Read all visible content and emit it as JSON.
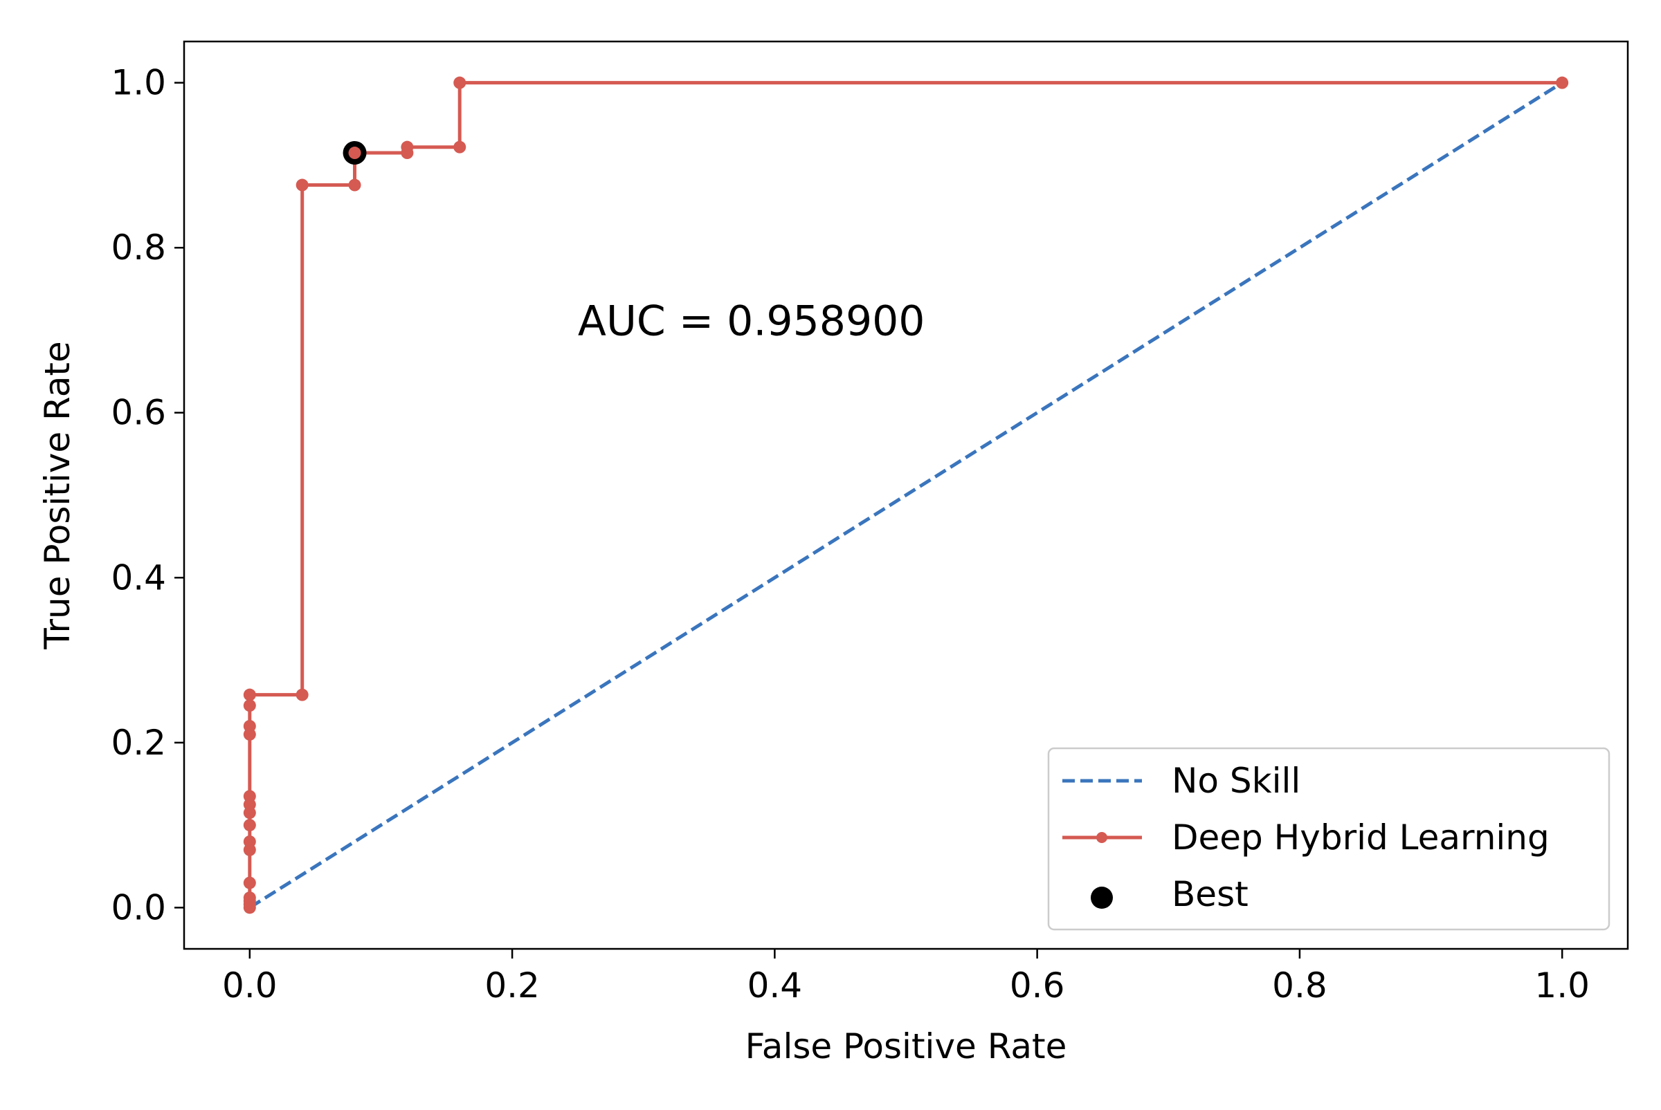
{
  "chart_data": {
    "type": "line",
    "xlabel": "False Positive Rate",
    "ylabel": "True Positive Rate",
    "xlim": [
      -0.05,
      1.05
    ],
    "ylim": [
      -0.05,
      1.05
    ],
    "xticks": [
      0.0,
      0.2,
      0.4,
      0.6,
      0.8,
      1.0
    ],
    "xtick_labels": [
      "0.0",
      "0.2",
      "0.4",
      "0.6",
      "0.8",
      "1.0"
    ],
    "yticks": [
      0.0,
      0.2,
      0.4,
      0.6,
      0.8,
      1.0
    ],
    "ytick_labels": [
      "0.0",
      "0.2",
      "0.4",
      "0.6",
      "0.8",
      "1.0"
    ],
    "grid": false,
    "legend_position": "bottom-right",
    "annotation": {
      "text": "AUC = 0.958900",
      "x": 0.25,
      "y": 0.69
    },
    "series": [
      {
        "name": "No Skill",
        "style": "dashed",
        "color": "#3a75bd",
        "x": [
          0.0,
          1.0
        ],
        "y": [
          0.0,
          1.0
        ]
      },
      {
        "name": "Deep Hybrid Learning",
        "style": "solid-marker",
        "color": "#d55a52",
        "x": [
          0.0,
          0.0,
          0.0,
          0.0,
          0.0,
          0.0,
          0.0,
          0.0,
          0.0,
          0.0,
          0.0,
          0.0,
          0.0,
          0.0,
          0.0,
          0.04,
          0.04,
          0.08,
          0.08,
          0.12,
          0.12,
          0.16,
          0.16,
          1.0
        ],
        "y": [
          0.0,
          0.004,
          0.008,
          0.012,
          0.03,
          0.07,
          0.08,
          0.1,
          0.115,
          0.125,
          0.135,
          0.21,
          0.22,
          0.245,
          0.258,
          0.258,
          0.876,
          0.876,
          0.915,
          0.915,
          0.922,
          0.922,
          1.0,
          1.0
        ]
      },
      {
        "name": "Best",
        "style": "point",
        "color": "#000000",
        "x": [
          0.08
        ],
        "y": [
          0.915
        ]
      }
    ]
  }
}
